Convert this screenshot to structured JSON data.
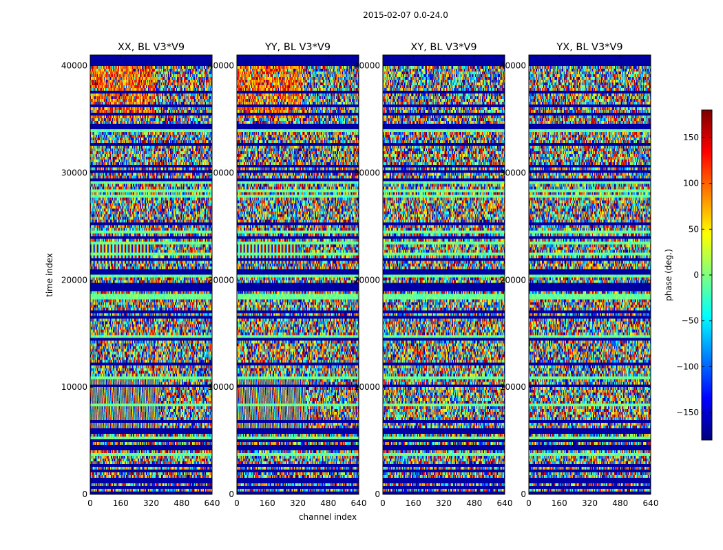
{
  "figure": {
    "suptitle": "2015-02-07 0.0-24.0"
  },
  "chart_data": {
    "type": "heatmap",
    "xlabel": "channel index",
    "ylabel": "time index",
    "xlim": [
      0,
      640
    ],
    "ylim": [
      0,
      41000
    ],
    "xticks": [
      0,
      160,
      320,
      480,
      640
    ],
    "yticks": [
      0,
      10000,
      20000,
      30000,
      40000
    ],
    "panels": [
      {
        "title": "XX, BL V3*V9",
        "fringes": true
      },
      {
        "title": "YY, BL V3*V9",
        "fringes": true
      },
      {
        "title": "XY, BL V3*V9",
        "fringes": false
      },
      {
        "title": "YX, BL V3*V9",
        "fringes": false
      }
    ],
    "colorbar": {
      "label": "phase (deg.)",
      "range": [
        -180,
        180
      ],
      "ticks": [
        -150,
        -100,
        -50,
        0,
        50,
        100,
        150
      ],
      "tick_labels": [
        "−150",
        "−100",
        "−50",
        "0",
        "50",
        "100",
        "150"
      ],
      "colormap": "jet"
    }
  }
}
